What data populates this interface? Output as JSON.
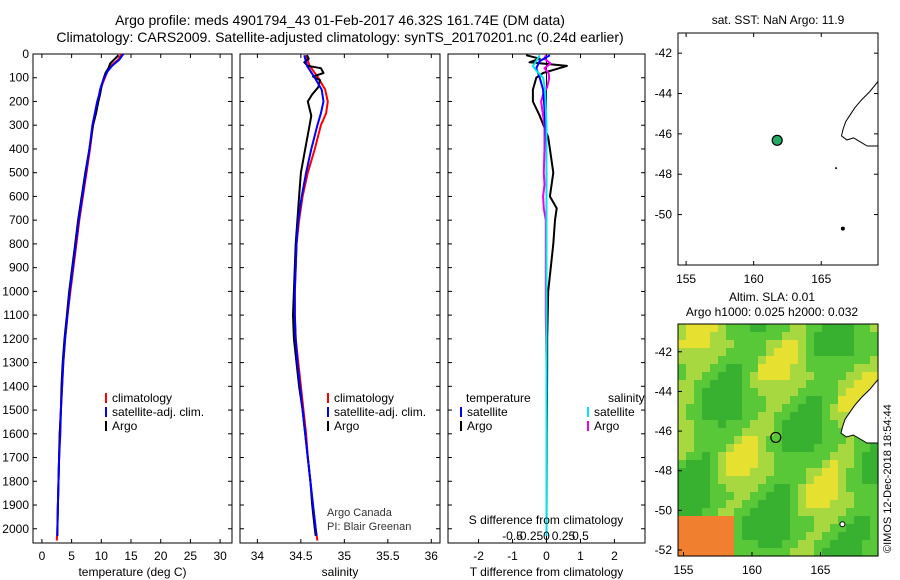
{
  "header": {
    "line1": "Argo profile: meds 4901794_43 01-Feb-2017 46.32S 161.74E (DM data)",
    "line2": "Climatology: CARS2009. Satellite-adjusted climatology: synTS_20170201.nc (0.24d earlier)"
  },
  "colors": {
    "climatology": "#ff0000",
    "satellite": "#0000ff",
    "argo": "#000000",
    "sat_salinity": "#00e5ee",
    "argo_salinity": "#ee00ee"
  },
  "chart_data": [
    {
      "type": "line",
      "title": "",
      "xlabel": "temperature (deg C)",
      "ylabel": "",
      "xlim": [
        -1.5,
        32
      ],
      "ylim": [
        2060,
        0
      ],
      "xticks": [
        "0",
        "5",
        "10",
        "15",
        "20",
        "25",
        "30"
      ],
      "yticks": [
        "0",
        "100",
        "200",
        "300",
        "400",
        "500",
        "600",
        "700",
        "800",
        "900",
        "1000",
        "1100",
        "1200",
        "1300",
        "1400",
        "1500",
        "1600",
        "1700",
        "1800",
        "1900",
        "2000"
      ],
      "legend": [
        "climatology",
        "satellite-adj. clim.",
        "Argo"
      ],
      "series": [
        {
          "name": "climatology",
          "color": "#ff0000",
          "points": [
            [
              13.4,
              0
            ],
            [
              12.8,
              25
            ],
            [
              11.6,
              50
            ],
            [
              11.0,
              75
            ],
            [
              10.6,
              100
            ],
            [
              10.2,
              125
            ],
            [
              9.9,
              150
            ],
            [
              9.7,
              175
            ],
            [
              9.5,
              200
            ],
            [
              9.1,
              250
            ],
            [
              8.6,
              300
            ],
            [
              8.1,
              400
            ],
            [
              7.5,
              500
            ],
            [
              6.9,
              600
            ],
            [
              6.3,
              700
            ],
            [
              5.8,
              800
            ],
            [
              5.3,
              900
            ],
            [
              4.8,
              1000
            ],
            [
              4.3,
              1100
            ],
            [
              3.9,
              1200
            ],
            [
              3.6,
              1300
            ],
            [
              3.4,
              1400
            ],
            [
              3.2,
              1500
            ],
            [
              3.0,
              1600
            ],
            [
              2.9,
              1700
            ],
            [
              2.8,
              1800
            ],
            [
              2.7,
              1900
            ],
            [
              2.6,
              2000
            ],
            [
              2.5,
              2050
            ]
          ]
        },
        {
          "name": "satellite-adj. clim.",
          "color": "#0000ff",
          "points": [
            [
              13.7,
              0
            ],
            [
              13.0,
              25
            ],
            [
              11.8,
              50
            ],
            [
              11.0,
              75
            ],
            [
              10.5,
              100
            ],
            [
              10.1,
              125
            ],
            [
              9.8,
              150
            ],
            [
              9.6,
              175
            ],
            [
              9.3,
              200
            ],
            [
              8.9,
              250
            ],
            [
              8.5,
              300
            ],
            [
              8.0,
              400
            ],
            [
              7.4,
              500
            ],
            [
              6.8,
              600
            ],
            [
              6.2,
              700
            ],
            [
              5.7,
              800
            ],
            [
              5.2,
              900
            ],
            [
              4.7,
              1000
            ],
            [
              4.3,
              1100
            ],
            [
              3.9,
              1200
            ],
            [
              3.6,
              1300
            ],
            [
              3.4,
              1400
            ],
            [
              3.2,
              1500
            ],
            [
              3.1,
              1600
            ],
            [
              2.9,
              1700
            ],
            [
              2.8,
              1800
            ],
            [
              2.7,
              1900
            ],
            [
              2.6,
              2000
            ],
            [
              2.6,
              2030
            ]
          ]
        },
        {
          "name": "Argo",
          "color": "#000000",
          "points": [
            [
              12.9,
              5
            ],
            [
              12.3,
              20
            ],
            [
              11.5,
              40
            ],
            [
              11.2,
              60
            ],
            [
              10.7,
              80
            ],
            [
              10.3,
              110
            ],
            [
              10.0,
              140
            ],
            [
              9.8,
              170
            ],
            [
              9.5,
              200
            ],
            [
              9.1,
              250
            ],
            [
              8.6,
              300
            ],
            [
              8.0,
              400
            ],
            [
              7.3,
              500
            ],
            [
              6.7,
              600
            ],
            [
              6.1,
              700
            ],
            [
              5.6,
              800
            ],
            [
              5.1,
              900
            ],
            [
              4.6,
              1000
            ],
            [
              4.2,
              1100
            ],
            [
              3.8,
              1200
            ],
            [
              3.5,
              1300
            ],
            [
              3.3,
              1400
            ],
            [
              3.2,
              1500
            ],
            [
              3.0,
              1600
            ],
            [
              2.9,
              1700
            ],
            [
              2.8,
              1800
            ],
            [
              2.7,
              1900
            ],
            [
              2.6,
              2000
            ],
            [
              2.6,
              2030
            ]
          ]
        }
      ]
    },
    {
      "type": "line",
      "title": "",
      "xlabel": "salinity",
      "ylabel": "",
      "xlim": [
        33.8,
        36.1
      ],
      "ylim": [
        2060,
        0
      ],
      "xticks": [
        "34",
        "34.5",
        "35",
        "35.5",
        "36"
      ],
      "legend": [
        "climatology",
        "satellite-adj. clim.",
        "Argo"
      ],
      "annotations": [
        "Argo Canada",
        "PI: Blair Greenan"
      ],
      "series": [
        {
          "name": "climatology",
          "color": "#ff0000",
          "points": [
            [
              34.56,
              5
            ],
            [
              34.6,
              50
            ],
            [
              34.7,
              100
            ],
            [
              34.78,
              150
            ],
            [
              34.81,
              200
            ],
            [
              34.79,
              250
            ],
            [
              34.73,
              300
            ],
            [
              34.66,
              400
            ],
            [
              34.58,
              500
            ],
            [
              34.52,
              600
            ],
            [
              34.48,
              700
            ],
            [
              34.45,
              800
            ],
            [
              34.44,
              900
            ],
            [
              34.43,
              1000
            ],
            [
              34.43,
              1100
            ],
            [
              34.44,
              1200
            ],
            [
              34.47,
              1300
            ],
            [
              34.5,
              1400
            ],
            [
              34.53,
              1500
            ],
            [
              34.56,
              1600
            ],
            [
              34.58,
              1700
            ],
            [
              34.61,
              1800
            ],
            [
              34.64,
              1900
            ],
            [
              34.67,
              2000
            ],
            [
              34.69,
              2050
            ]
          ]
        },
        {
          "name": "satellite-adj. clim.",
          "color": "#0000ff",
          "points": [
            [
              34.54,
              5
            ],
            [
              34.57,
              50
            ],
            [
              34.66,
              100
            ],
            [
              34.74,
              150
            ],
            [
              34.76,
              200
            ],
            [
              34.73,
              250
            ],
            [
              34.69,
              300
            ],
            [
              34.62,
              400
            ],
            [
              34.56,
              500
            ],
            [
              34.51,
              600
            ],
            [
              34.47,
              700
            ],
            [
              34.45,
              800
            ],
            [
              34.44,
              900
            ],
            [
              34.43,
              1000
            ],
            [
              34.43,
              1100
            ],
            [
              34.44,
              1200
            ],
            [
              34.46,
              1300
            ],
            [
              34.49,
              1400
            ],
            [
              34.52,
              1500
            ],
            [
              34.55,
              1600
            ],
            [
              34.58,
              1700
            ],
            [
              34.61,
              1800
            ],
            [
              34.64,
              1900
            ],
            [
              34.67,
              2000
            ],
            [
              34.68,
              2030
            ]
          ]
        },
        {
          "name": "Argo",
          "color": "#000000",
          "points": [
            [
              34.57,
              5
            ],
            [
              34.59,
              20
            ],
            [
              34.54,
              35
            ],
            [
              34.58,
              50
            ],
            [
              34.73,
              60
            ],
            [
              34.76,
              80
            ],
            [
              34.64,
              95
            ],
            [
              34.72,
              110
            ],
            [
              34.7,
              140
            ],
            [
              34.63,
              170
            ],
            [
              34.58,
              200
            ],
            [
              34.62,
              260
            ],
            [
              34.6,
              300
            ],
            [
              34.55,
              400
            ],
            [
              34.5,
              500
            ],
            [
              34.48,
              600
            ],
            [
              34.46,
              700
            ],
            [
              34.44,
              800
            ],
            [
              34.43,
              900
            ],
            [
              34.42,
              1000
            ],
            [
              34.41,
              1100
            ],
            [
              34.42,
              1200
            ],
            [
              34.45,
              1300
            ],
            [
              34.48,
              1400
            ],
            [
              34.52,
              1500
            ],
            [
              34.55,
              1600
            ],
            [
              34.58,
              1700
            ],
            [
              34.61,
              1800
            ],
            [
              34.63,
              1900
            ],
            [
              34.66,
              2000
            ],
            [
              34.67,
              2030
            ]
          ]
        }
      ]
    },
    {
      "type": "line",
      "title": "",
      "xlabel": "T difference from climatology",
      "ylabel": "",
      "xlim": [
        -2.9,
        2.9
      ],
      "ylim": [
        2060,
        0
      ],
      "xticks": [
        "-2",
        "-1",
        "0",
        "1",
        "2"
      ],
      "second_axis_label": "S difference from climatology",
      "second_axis_ticks": [
        "-0.5",
        "-0.25",
        "0",
        "0.25",
        "0.5"
      ],
      "legend_temperature_header": "temperature",
      "legend_salinity_header": "salinity",
      "legend_temperature": [
        "satellite",
        "Argo"
      ],
      "legend_salinity": [
        "satellite",
        "Argo"
      ],
      "series": [
        {
          "name": "satellite (temperature)",
          "color": "#0000ff",
          "points": [
            [
              0.1,
              5
            ],
            [
              -0.2,
              30
            ],
            [
              -0.3,
              60
            ],
            [
              -0.2,
              100
            ],
            [
              -0.1,
              150
            ],
            [
              -0.05,
              250
            ],
            [
              0,
              400
            ],
            [
              0,
              1000
            ],
            [
              0,
              2030
            ]
          ]
        },
        {
          "name": "Argo (temperature)",
          "color": "#000000",
          "points": [
            [
              -0.6,
              5
            ],
            [
              -0.2,
              20
            ],
            [
              -0.5,
              35
            ],
            [
              0.6,
              50
            ],
            [
              -0.1,
              80
            ],
            [
              -0.3,
              100
            ],
            [
              -0.4,
              150
            ],
            [
              -0.4,
              200
            ],
            [
              -0.2,
              260
            ],
            [
              0.05,
              350
            ],
            [
              0.15,
              450
            ],
            [
              0.2,
              500
            ],
            [
              0.1,
              600
            ],
            [
              0.3,
              650
            ],
            [
              0.25,
              700
            ],
            [
              0.2,
              800
            ],
            [
              0.05,
              1000
            ],
            [
              0.02,
              1200
            ],
            [
              0.02,
              1300
            ],
            [
              0.01,
              1600
            ],
            [
              0,
              2030
            ]
          ]
        },
        {
          "name": "satellite (salinity)",
          "color": "#00e5ee",
          "points": [
            [
              -0.1,
              5
            ],
            [
              -0.15,
              30
            ],
            [
              -0.2,
              50
            ],
            [
              -0.15,
              70
            ],
            [
              -0.05,
              100
            ],
            [
              -0.02,
              150
            ],
            [
              0,
              300
            ],
            [
              0,
              1000
            ],
            [
              0,
              2030
            ]
          ]
        },
        {
          "name": "Argo (salinity)",
          "color": "#ee00ee",
          "points": [
            [
              -0.01,
              5
            ],
            [
              -0.03,
              20
            ],
            [
              0.06,
              40
            ],
            [
              -0.03,
              60
            ],
            [
              0.03,
              80
            ],
            [
              0.04,
              100
            ],
            [
              0.01,
              140
            ],
            [
              -0.05,
              170
            ],
            [
              -0.08,
              200
            ],
            [
              -0.03,
              300
            ],
            [
              -0.03,
              400
            ],
            [
              -0.04,
              500
            ],
            [
              -0.03,
              550
            ],
            [
              -0.05,
              600
            ],
            [
              -0.04,
              650
            ],
            [
              -0.01,
              700
            ],
            [
              -0.01,
              900
            ],
            [
              -0.01,
              1100
            ],
            [
              0,
              1300
            ],
            [
              0,
              1600
            ],
            [
              0,
              2030
            ]
          ]
        }
      ]
    },
    {
      "type": "scatter",
      "title": "sat. SST: NaN Argo: 11.9",
      "xlabel": "",
      "ylabel": "",
      "xlim": [
        154.4,
        169.2
      ],
      "ylim": [
        -52.5,
        -41
      ],
      "xticks": [
        "155",
        "160",
        "165"
      ],
      "yticks": [
        "-42",
        "-44",
        "-46",
        "-48",
        "-50"
      ],
      "marker": {
        "lon": 161.74,
        "lat": -46.32
      }
    },
    {
      "type": "heatmap",
      "title": "Altim. SLA: 0.01",
      "subtitle": "Argo h1000: 0.025 h2000: 0.032",
      "xlim": [
        154.6,
        169.2
      ],
      "ylim": [
        -52.3,
        -40.6
      ],
      "xticks": [
        "155",
        "160",
        "165"
      ],
      "yticks": [
        "-42",
        "-44",
        "-46",
        "-48",
        "-50",
        "-52"
      ],
      "marker": {
        "lon": 161.74,
        "lat": -46.32
      },
      "stamp": "©IMOS 12-Dec-2018 18:54:44"
    }
  ]
}
